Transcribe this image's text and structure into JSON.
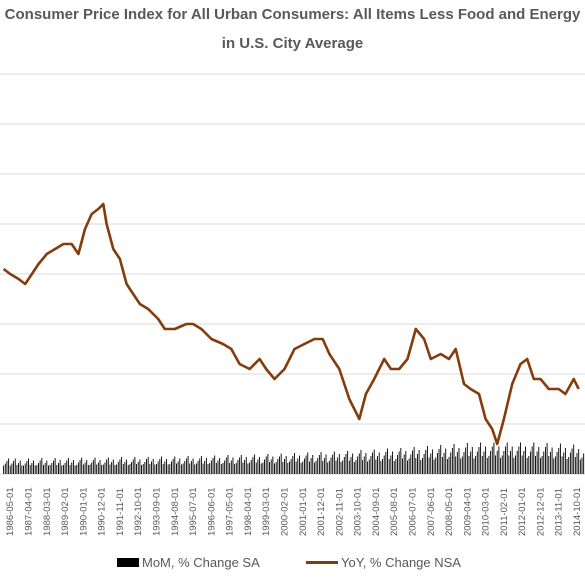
{
  "chart_data": {
    "type": "line",
    "title_line_1": "Consumer Price Index for All Urban Consumers: All Items Less Food and Energy",
    "title_line_2": "in U.S. City Average",
    "x_tick_labels": [
      "1986-05-01",
      "1987-04-01",
      "1988-03-01",
      "1989-02-01",
      "1990-01-01",
      "1990-12-01",
      "1991-11-01",
      "1992-10-01",
      "1993-09-01",
      "1994-08-01",
      "1995-07-01",
      "1996-06-01",
      "1997-05-01",
      "1998-04-01",
      "1999-03-01",
      "2000-02-01",
      "2001-01-01",
      "2001-12-01",
      "2002-11-01",
      "2003-10-01",
      "2004-09-01",
      "2005-08-01",
      "2006-07-01",
      "2007-06-01",
      "2008-05-01",
      "2009-04-01",
      "2010-03-01",
      "2011-02-01",
      "2012-01-01",
      "2012-12-01",
      "2013-11-01",
      "2014-10-01"
    ],
    "gridline_count": 9,
    "series": [
      {
        "name": "YoY, % Change NSA",
        "color": "#843c0c",
        "points": [
          [
            "1986-01",
            4.1
          ],
          [
            "1986-05",
            4.0
          ],
          [
            "1986-10",
            3.9
          ],
          [
            "1987-02",
            3.8
          ],
          [
            "1987-06",
            4.0
          ],
          [
            "1987-10",
            4.2
          ],
          [
            "1988-03",
            4.4
          ],
          [
            "1988-08",
            4.5
          ],
          [
            "1989-01",
            4.6
          ],
          [
            "1989-06",
            4.6
          ],
          [
            "1989-10",
            4.4
          ],
          [
            "1990-02",
            4.9
          ],
          [
            "1990-06",
            5.2
          ],
          [
            "1990-10",
            5.3
          ],
          [
            "1991-01",
            5.4
          ],
          [
            "1991-03",
            5.0
          ],
          [
            "1991-07",
            4.5
          ],
          [
            "1991-11",
            4.3
          ],
          [
            "1992-03",
            3.8
          ],
          [
            "1992-07",
            3.6
          ],
          [
            "1992-11",
            3.4
          ],
          [
            "1993-04",
            3.3
          ],
          [
            "1993-10",
            3.1
          ],
          [
            "1994-02",
            2.9
          ],
          [
            "1994-08",
            2.9
          ],
          [
            "1995-03",
            3.0
          ],
          [
            "1995-07",
            3.0
          ],
          [
            "1995-12",
            2.9
          ],
          [
            "1996-06",
            2.7
          ],
          [
            "1997-01",
            2.6
          ],
          [
            "1997-06",
            2.5
          ],
          [
            "1997-11",
            2.2
          ],
          [
            "1998-05",
            2.1
          ],
          [
            "1998-11",
            2.3
          ],
          [
            "1999-03",
            2.1
          ],
          [
            "1999-08",
            1.9
          ],
          [
            "2000-02",
            2.1
          ],
          [
            "2000-08",
            2.5
          ],
          [
            "2001-02",
            2.6
          ],
          [
            "2001-08",
            2.7
          ],
          [
            "2002-01",
            2.7
          ],
          [
            "2002-05",
            2.4
          ],
          [
            "2002-11",
            2.1
          ],
          [
            "2003-05",
            1.5
          ],
          [
            "2003-11",
            1.1
          ],
          [
            "2004-03",
            1.6
          ],
          [
            "2004-08",
            1.9
          ],
          [
            "2005-02",
            2.3
          ],
          [
            "2005-06",
            2.1
          ],
          [
            "2005-11",
            2.1
          ],
          [
            "2006-04",
            2.3
          ],
          [
            "2006-09",
            2.9
          ],
          [
            "2007-02",
            2.7
          ],
          [
            "2007-06",
            2.3
          ],
          [
            "2007-12",
            2.4
          ],
          [
            "2008-05",
            2.3
          ],
          [
            "2008-09",
            2.5
          ],
          [
            "2009-02",
            1.8
          ],
          [
            "2009-06",
            1.7
          ],
          [
            "2009-11",
            1.6
          ],
          [
            "2010-03",
            1.1
          ],
          [
            "2010-07",
            0.9
          ],
          [
            "2010-10",
            0.6
          ],
          [
            "2011-02",
            1.1
          ],
          [
            "2011-07",
            1.8
          ],
          [
            "2011-12",
            2.2
          ],
          [
            "2012-04",
            2.3
          ],
          [
            "2012-08",
            1.9
          ],
          [
            "2012-12",
            1.9
          ],
          [
            "2013-05",
            1.7
          ],
          [
            "2013-11",
            1.7
          ],
          [
            "2014-03",
            1.6
          ],
          [
            "2014-08",
            1.9
          ],
          [
            "2014-11",
            1.7
          ]
        ]
      },
      {
        "name": "MoM, % Change SA",
        "color": "#000000",
        "start": "1986-01",
        "values": [
          0.17,
          0.21,
          0.26,
          0.31,
          0.17,
          0.21,
          0.26,
          0.31,
          0.18,
          0.22,
          0.27,
          0.17,
          0.17,
          0.21,
          0.26,
          0.31,
          0.18,
          0.22,
          0.27,
          0.17,
          0.18,
          0.22,
          0.27,
          0.32,
          0.18,
          0.22,
          0.27,
          0.17,
          0.18,
          0.22,
          0.27,
          0.32,
          0.18,
          0.22,
          0.28,
          0.17,
          0.18,
          0.22,
          0.27,
          0.32,
          0.18,
          0.23,
          0.28,
          0.17,
          0.18,
          0.23,
          0.28,
          0.33,
          0.19,
          0.23,
          0.28,
          0.18,
          0.19,
          0.23,
          0.28,
          0.33,
          0.19,
          0.23,
          0.28,
          0.18,
          0.19,
          0.23,
          0.29,
          0.33,
          0.19,
          0.24,
          0.29,
          0.18,
          0.19,
          0.24,
          0.29,
          0.34,
          0.2,
          0.24,
          0.29,
          0.18,
          0.2,
          0.24,
          0.29,
          0.34,
          0.2,
          0.24,
          0.29,
          0.18,
          0.2,
          0.24,
          0.3,
          0.34,
          0.2,
          0.25,
          0.3,
          0.19,
          0.2,
          0.25,
          0.3,
          0.35,
          0.2,
          0.25,
          0.3,
          0.19,
          0.2,
          0.25,
          0.3,
          0.35,
          0.21,
          0.25,
          0.31,
          0.19,
          0.21,
          0.26,
          0.31,
          0.36,
          0.21,
          0.26,
          0.31,
          0.19,
          0.21,
          0.26,
          0.31,
          0.36,
          0.21,
          0.26,
          0.32,
          0.2,
          0.22,
          0.27,
          0.32,
          0.37,
          0.22,
          0.27,
          0.32,
          0.2,
          0.22,
          0.27,
          0.33,
          0.38,
          0.22,
          0.27,
          0.33,
          0.2,
          0.22,
          0.28,
          0.33,
          0.38,
          0.23,
          0.28,
          0.34,
          0.21,
          0.23,
          0.28,
          0.34,
          0.39,
          0.23,
          0.29,
          0.34,
          0.21,
          0.23,
          0.29,
          0.35,
          0.4,
          0.24,
          0.29,
          0.35,
          0.21,
          0.24,
          0.3,
          0.35,
          0.41,
          0.24,
          0.3,
          0.36,
          0.22,
          0.25,
          0.3,
          0.36,
          0.42,
          0.25,
          0.31,
          0.37,
          0.22,
          0.25,
          0.31,
          0.37,
          0.43,
          0.25,
          0.32,
          0.38,
          0.23,
          0.26,
          0.32,
          0.38,
          0.44,
          0.26,
          0.32,
          0.39,
          0.23,
          0.26,
          0.33,
          0.39,
          0.45,
          0.27,
          0.33,
          0.4,
          0.24,
          0.27,
          0.34,
          0.4,
          0.46,
          0.27,
          0.34,
          0.41,
          0.24,
          0.28,
          0.35,
          0.41,
          0.48,
          0.28,
          0.35,
          0.42,
          0.25,
          0.29,
          0.36,
          0.43,
          0.49,
          0.29,
          0.36,
          0.43,
          0.26,
          0.3,
          0.37,
          0.44,
          0.51,
          0.3,
          0.37,
          0.45,
          0.26,
          0.3,
          0.38,
          0.45,
          0.52,
          0.31,
          0.39,
          0.46,
          0.27,
          0.31,
          0.39,
          0.47,
          0.54,
          0.32,
          0.4,
          0.48,
          0.28,
          0.32,
          0.4,
          0.48,
          0.56,
          0.33,
          0.41,
          0.49,
          0.29,
          0.33,
          0.42,
          0.5,
          0.58,
          0.34,
          0.42,
          0.51,
          0.3,
          0.34,
          0.43,
          0.52,
          0.6,
          0.35,
          0.44,
          0.52,
          0.31,
          0.35,
          0.44,
          0.53,
          0.62,
          0.36,
          0.45,
          0.54,
          0.31,
          0.36,
          0.45,
          0.54,
          0.63,
          0.36,
          0.45,
          0.55,
          0.32,
          0.36,
          0.46,
          0.55,
          0.63,
          0.37,
          0.46,
          0.55,
          0.32,
          0.37,
          0.46,
          0.55,
          0.63,
          0.37,
          0.46,
          0.55,
          0.32,
          0.37,
          0.46,
          0.55,
          0.63,
          0.37,
          0.46,
          0.55,
          0.32,
          0.36,
          0.45,
          0.55,
          0.63,
          0.36,
          0.45,
          0.54,
          0.32,
          0.36,
          0.45,
          0.54,
          0.62,
          0.36,
          0.44,
          0.53,
          0.31,
          0.35,
          0.44,
          0.52,
          0.61,
          0.35,
          0.43,
          0.52,
          0.3,
          0.34,
          0.43,
          0.51,
          0.59,
          0.34,
          0.42,
          0.5,
          0.29,
          0.33,
          0.41,
          0.49,
          0.57,
          0.33,
          0.41,
          0.48,
          0.28,
          0.32,
          0.4,
          0.47,
          0.55,
          0.32,
          0.39,
          0.47,
          0.27,
          0.31,
          0.38,
          0.46,
          0.53,
          0.31,
          0.38,
          0.45,
          0.26,
          0.3,
          0.37,
          0.44,
          0.51,
          0.29,
          0.36,
          0.43,
          0.25,
          0.29,
          0.35,
          0.42,
          0.49,
          0.28,
          0.35,
          0.41,
          0.24,
          0.28,
          0.34,
          0.4,
          0.47,
          0.27,
          0.33,
          0.4,
          0.23,
          0.26,
          0.33,
          0.39,
          0.45,
          0.26,
          0.32,
          0.38,
          0.22,
          0.25,
          0.31,
          0.37,
          0.43,
          0.25,
          0.3,
          0.36,
          0.21,
          0.24,
          0.3,
          0.36,
          0.42,
          0.24,
          0.29,
          0.35,
          0.2,
          0.23,
          0.29,
          0.34,
          0.4,
          0.23,
          0.28,
          0.34,
          0.2,
          0.22,
          0.28,
          0.33,
          0.38,
          0.22,
          0.27,
          0.32,
          0.19,
          0.21,
          0.27,
          0.32,
          0.37,
          0.21,
          0.26,
          0.31,
          0.18,
          0.21,
          0.26,
          0.31,
          0.36,
          0.2,
          0.25,
          0.3,
          0.18,
          0.2,
          0.25,
          0.3,
          0.34,
          0.2,
          0.24,
          0.29,
          0.17,
          0.19,
          0.24,
          0.29,
          0.33,
          0.19,
          0.24,
          0.28,
          0.17,
          0.19,
          0.23,
          0.28,
          0.32,
          0.19,
          0.23,
          0.27,
          0.16,
          0.18,
          0.22,
          0.27,
          0.31,
          0.18,
          0.22,
          0.27,
          0.16,
          0.18,
          0.22,
          0.26,
          0.3,
          0.17,
          0.22,
          0.26,
          0.15,
          0.17,
          0.21,
          0.26,
          0.3,
          0.17,
          0.21,
          0.25,
          0.15,
          0.17,
          0.21,
          0.25,
          0.29,
          0.17,
          0.21,
          0.25,
          0.15,
          0.17,
          0.21,
          0.25,
          0.29,
          0.17,
          0.21,
          0.25,
          0.15,
          0.17,
          0.21,
          0.25,
          0.29,
          0.17,
          0.21,
          0.25,
          0.15,
          0.17,
          0.21,
          0.25,
          0.29,
          0.17,
          0.21,
          0.25,
          0.15,
          0.17,
          0.21,
          0.25,
          0.29,
          0.17,
          0.21,
          0.25,
          0.15,
          0.17,
          0.21,
          0.25,
          0.29,
          0.17,
          0.21,
          0.25,
          0.15,
          0.17,
          0.21,
          0.25,
          0.29,
          0.17,
          0.21,
          0.25,
          0.15,
          0.17,
          0.21,
          0.25,
          0.29,
          0.17,
          0.21,
          0.25,
          0.15,
          0.17,
          0.21,
          0.25,
          0.29,
          0.17,
          0.21,
          0.25,
          0.15,
          0.17,
          0.21,
          0.25,
          0.29,
          0.17,
          0.21,
          0.25,
          0.15,
          0.17,
          0.21,
          0.25,
          0.29,
          0.17,
          0.21,
          0.25,
          0.15,
          0.17,
          0.21,
          0.25,
          0.29,
          0.17,
          0.21,
          0.25,
          0.15,
          0.17,
          0.21,
          0.25,
          0.29,
          0.17,
          0.21,
          0.25,
          0.15,
          0.17,
          0.21,
          0.25,
          0.29,
          0.17,
          0.21,
          0.25,
          0.15,
          0.17,
          0.21,
          0.25,
          0.29,
          0.17,
          0.21,
          0.25,
          0.15,
          0.17,
          0.21,
          0.25,
          0.29,
          0.17,
          0.21,
          0.25,
          0.15,
          0.17,
          0.21,
          0.25,
          0.29,
          0.17,
          0.21,
          0.25,
          0.15,
          0.17,
          0.21,
          0.25,
          0.29,
          0.17,
          0.21,
          0.25,
          0.15,
          0.17,
          0.21,
          0.25,
          0.29,
          0.17,
          0.21,
          0.25,
          0.15,
          0.17,
          0.21,
          0.25,
          0.29,
          0.17,
          0.21,
          0.25,
          0.15,
          0.17,
          0.21,
          0.25,
          0.29,
          0.17,
          0.21,
          0.25,
          0.15,
          0.17,
          0.21,
          0.25,
          0.29,
          0.17,
          0.21,
          0.25
        ]
      }
    ],
    "legend_position": "bottom",
    "grid": true
  }
}
